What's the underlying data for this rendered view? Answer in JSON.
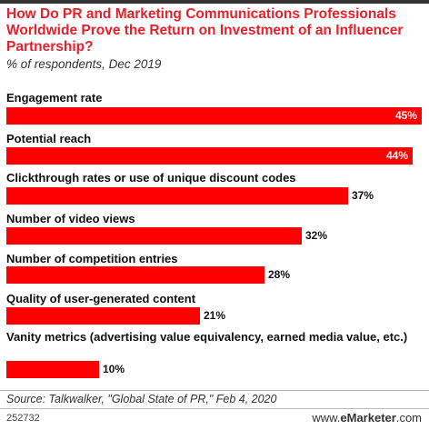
{
  "header": {
    "title": "How Do PR and Marketing Communications Professionals Worldwide Prove the Return on Investment of an Influencer Partnership?",
    "subtitle": "% of respondents, Dec 2019"
  },
  "chart_data": {
    "type": "bar",
    "orientation": "horizontal",
    "title": "How Do PR and Marketing Communications Professionals Worldwide Prove the Return on Investment of an Influencer Partnership?",
    "subtitle": "% of respondents, Dec 2019",
    "categories": [
      "Engagement rate",
      "Potential reach",
      "Clickthrough rates or use of unique discount codes",
      "Number of video views",
      "Number of competition entries",
      "Quality of user-generated content",
      "Vanity metrics (advertising value equivalency, earned media value, etc.)"
    ],
    "values": [
      45,
      44,
      37,
      32,
      28,
      21,
      10
    ],
    "value_labels": [
      "45%",
      "44%",
      "37%",
      "32%",
      "28%",
      "21%",
      "10%"
    ],
    "xlim": [
      0,
      45
    ],
    "grid": false,
    "legend": "none",
    "bar_color": "#ff0000"
  },
  "footer": {
    "source": "Source: Talkwalker, \"Global State of PR,\" Feb 4, 2020",
    "chart_id": "252732",
    "brand_prefix": "www.",
    "brand_name": "eMarketer",
    "brand_suffix": ".com"
  }
}
